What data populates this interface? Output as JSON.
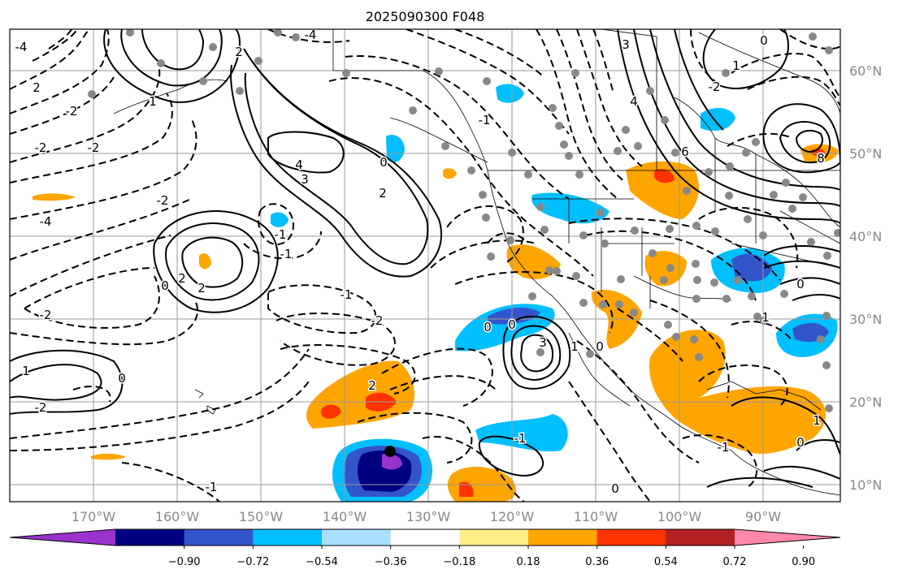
{
  "title": "2025090300 F048",
  "map": {
    "lon_labels": [
      "170°W",
      "160°W",
      "150°W",
      "140°W",
      "130°W",
      "120°W",
      "110°W",
      "100°W",
      "90°W"
    ],
    "lat_labels": [
      "60°N",
      "50°N",
      "40°N",
      "30°N",
      "20°N",
      "10°N"
    ],
    "contour_labels": [
      "-4",
      "-4",
      "2",
      "2",
      "-2",
      "1",
      "-2",
      "-2",
      "-4",
      "4",
      "3",
      "-2",
      "0",
      "-1",
      "-1",
      "2",
      "2",
      "0",
      "-1",
      "-2",
      "-2",
      "1",
      "0",
      "-2",
      "-1",
      "0",
      "2",
      "-1",
      "3",
      "0",
      "3",
      "6",
      "4",
      "-2",
      "0",
      "1",
      "-1",
      "0",
      "1",
      "0",
      "1",
      "0",
      "1",
      "8",
      "2",
      "-1",
      "0"
    ]
  },
  "colorbar": {
    "ticks": [
      "−0.90",
      "−0.72",
      "−0.54",
      "−0.36",
      "−0.18",
      "0.18",
      "0.36",
      "0.54",
      "0.72",
      "0.90"
    ],
    "colors": [
      "#9933cc",
      "#000080",
      "#3355cc",
      "#00bfff",
      "#aae0ff",
      "#ffffff",
      "#ffee88",
      "#ffa500",
      "#ff3300",
      "#b22222",
      "#ff88aa"
    ]
  }
}
